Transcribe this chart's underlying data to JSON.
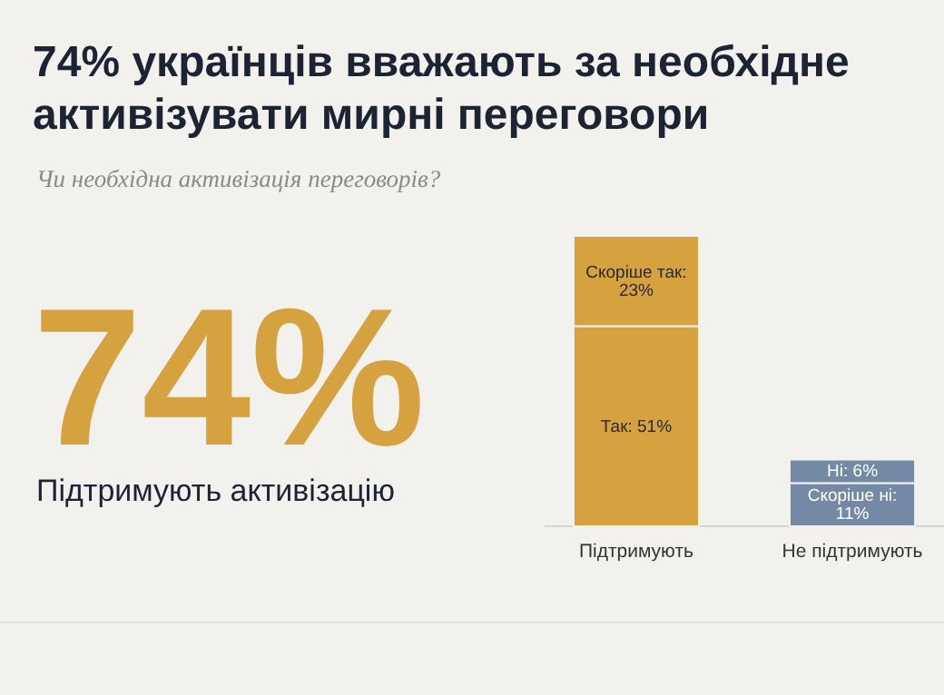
{
  "chart_data": {
    "type": "bar",
    "stacked": true,
    "title": "74% українців вважають за необхідне активізувати мирні переговори",
    "subtitle": "Чи необхідна активізація переговорів?",
    "categories": [
      "Підтримують",
      "Не підтримують"
    ],
    "series": [
      {
        "color": "#d6a240",
        "values": [
          51,
          null
        ],
        "value_labels": [
          "Так: 51%",
          null
        ]
      },
      {
        "color": "#d6a240",
        "values": [
          23,
          null
        ],
        "value_labels": [
          "Скоріше так: 23%",
          null
        ]
      },
      {
        "color": "#7389a5",
        "values": [
          null,
          11
        ],
        "value_labels": [
          null,
          "Скоріше ні: 11%"
        ]
      },
      {
        "color": "#7389a5",
        "values": [
          null,
          6
        ],
        "value_labels": [
          null,
          "Ні: 6%"
        ]
      }
    ],
    "annotations": [
      "74%",
      "Підтримують активізацію"
    ]
  }
}
